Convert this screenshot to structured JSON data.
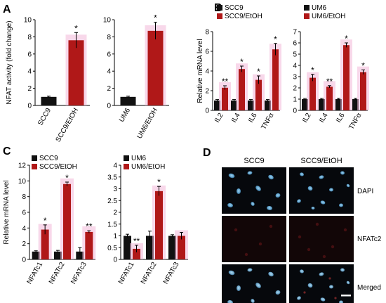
{
  "panels": [
    {
      "letter": "A"
    },
    {
      "letter": "B"
    },
    {
      "letter": "C"
    },
    {
      "letter": "D"
    }
  ],
  "colors": {
    "control": "#111111",
    "treated": "#b01818",
    "glow": "#f3b8d8",
    "axis": "#000000",
    "error": "#000000"
  },
  "chart_data": [
    {
      "id": "A1",
      "panel": "A",
      "type": "bar",
      "ylabel": "NFAT activity (fold change)",
      "ylim": [
        0,
        10
      ],
      "yticks": [
        0,
        2,
        4,
        6,
        8,
        10
      ],
      "categories": [
        "SCC9",
        "SCC9/EtOH"
      ],
      "values": [
        1,
        7.6
      ],
      "errors": [
        0.08,
        0.9
      ],
      "sig": [
        "",
        "*"
      ],
      "bar_colors": [
        "control",
        "treated"
      ]
    },
    {
      "id": "A2",
      "panel": "A",
      "type": "bar",
      "ylabel": "",
      "ylim": [
        0,
        10
      ],
      "yticks": [
        0,
        2,
        4,
        6,
        8,
        10
      ],
      "categories": [
        "UM6",
        "UM6/EtOH"
      ],
      "values": [
        1,
        8.7
      ],
      "errors": [
        0.08,
        1.0
      ],
      "sig": [
        "",
        "*"
      ],
      "bar_colors": [
        "control",
        "treated"
      ]
    },
    {
      "id": "B1",
      "panel": "B",
      "type": "bar",
      "ylabel": "Relative mRNA level",
      "ylim": [
        0,
        8
      ],
      "yticks": [
        0,
        2,
        4,
        6,
        8
      ],
      "categories": [
        "IL2",
        "IL4",
        "IL6",
        "TNFα"
      ],
      "legend": [
        "SCC9",
        "SCC9/EtOH"
      ],
      "series": [
        {
          "name": "SCC9",
          "values": [
            1,
            1,
            1,
            1
          ],
          "errors": [
            0.1,
            0.1,
            0.1,
            0.1
          ],
          "sig": [
            "",
            "",
            "",
            ""
          ]
        },
        {
          "name": "SCC9/EtOH",
          "values": [
            2.3,
            4.2,
            3.1,
            6.2
          ],
          "errors": [
            0.2,
            0.3,
            0.4,
            0.6
          ],
          "sig": [
            "**",
            "*",
            "*",
            "*"
          ]
        }
      ]
    },
    {
      "id": "B2",
      "panel": "B",
      "type": "bar",
      "ylabel": "",
      "ylim": [
        0,
        7
      ],
      "yticks": [
        0,
        1,
        2,
        3,
        4,
        5,
        6,
        7
      ],
      "categories": [
        "IL2",
        "IL4",
        "IL6",
        "TNFα"
      ],
      "legend": [
        "UM6",
        "UM6/EtOH"
      ],
      "series": [
        {
          "name": "UM6",
          "values": [
            1,
            1,
            1,
            1
          ],
          "errors": [
            0.06,
            0.06,
            0.06,
            0.06
          ],
          "sig": [
            "",
            "",
            "",
            ""
          ]
        },
        {
          "name": "UM6/EtOH",
          "values": [
            2.9,
            2.1,
            5.8,
            3.4
          ],
          "errors": [
            0.3,
            0.1,
            0.2,
            0.2
          ],
          "sig": [
            "*",
            "**",
            "*",
            "*"
          ]
        }
      ]
    },
    {
      "id": "C1",
      "panel": "C",
      "type": "bar",
      "ylabel": "Relative mRNA level",
      "ylim": [
        0,
        12
      ],
      "yticks": [
        0,
        2,
        4,
        6,
        8,
        10,
        12
      ],
      "categories": [
        "NFATc1",
        "NFATc2",
        "NFATc3"
      ],
      "legend": [
        "SCC9",
        "SCC9/EtOH"
      ],
      "series": [
        {
          "name": "SCC9",
          "values": [
            1,
            1,
            1
          ],
          "errors": [
            0.1,
            0.15,
            0.5
          ],
          "sig": [
            "",
            "",
            ""
          ]
        },
        {
          "name": "SCC9/EtOH",
          "values": [
            3.8,
            9.6,
            3.5
          ],
          "errors": [
            0.6,
            0.25,
            0.15
          ],
          "sig": [
            "*",
            "*",
            "**"
          ]
        }
      ]
    },
    {
      "id": "C2",
      "panel": "C",
      "type": "bar",
      "ylabel": "",
      "ylim": [
        0,
        4
      ],
      "yticks": [
        0,
        0.5,
        1,
        1.5,
        2,
        2.5,
        3,
        3.5,
        4
      ],
      "categories": [
        "NFATc1",
        "NFATc2",
        "NFATc3"
      ],
      "legend": [
        "UM6",
        "UM6/EtOH"
      ],
      "series": [
        {
          "name": "UM6",
          "values": [
            1,
            1,
            1
          ],
          "errors": [
            0.07,
            0.2,
            0.05
          ],
          "sig": [
            "",
            "",
            ""
          ]
        },
        {
          "name": "UM6/EtOH",
          "values": [
            0.45,
            2.9,
            1.0
          ],
          "errors": [
            0.15,
            0.2,
            0.15
          ],
          "sig": [
            "**",
            "*",
            ""
          ]
        }
      ]
    }
  ],
  "micrographs": {
    "columns": [
      "SCC9",
      "SCC9/EtOH"
    ],
    "rows": [
      "DAPI",
      "NFATc2",
      "Merged"
    ]
  }
}
